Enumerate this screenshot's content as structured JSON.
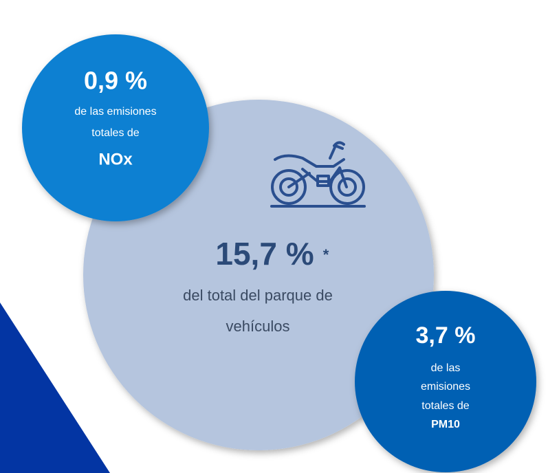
{
  "center": {
    "value": "15,7 %",
    "footnote_mark": "*",
    "lines": [
      "del total del parque de",
      "vehículos"
    ]
  },
  "top_left": {
    "value": "0,9 %",
    "lines": [
      "de las emisiones",
      "totales de"
    ],
    "pollutant": "NOx"
  },
  "bottom_right": {
    "value": "3,7 %",
    "lines": [
      "de las",
      "emisiones",
      "totales de"
    ],
    "pollutant": "PM10"
  }
}
